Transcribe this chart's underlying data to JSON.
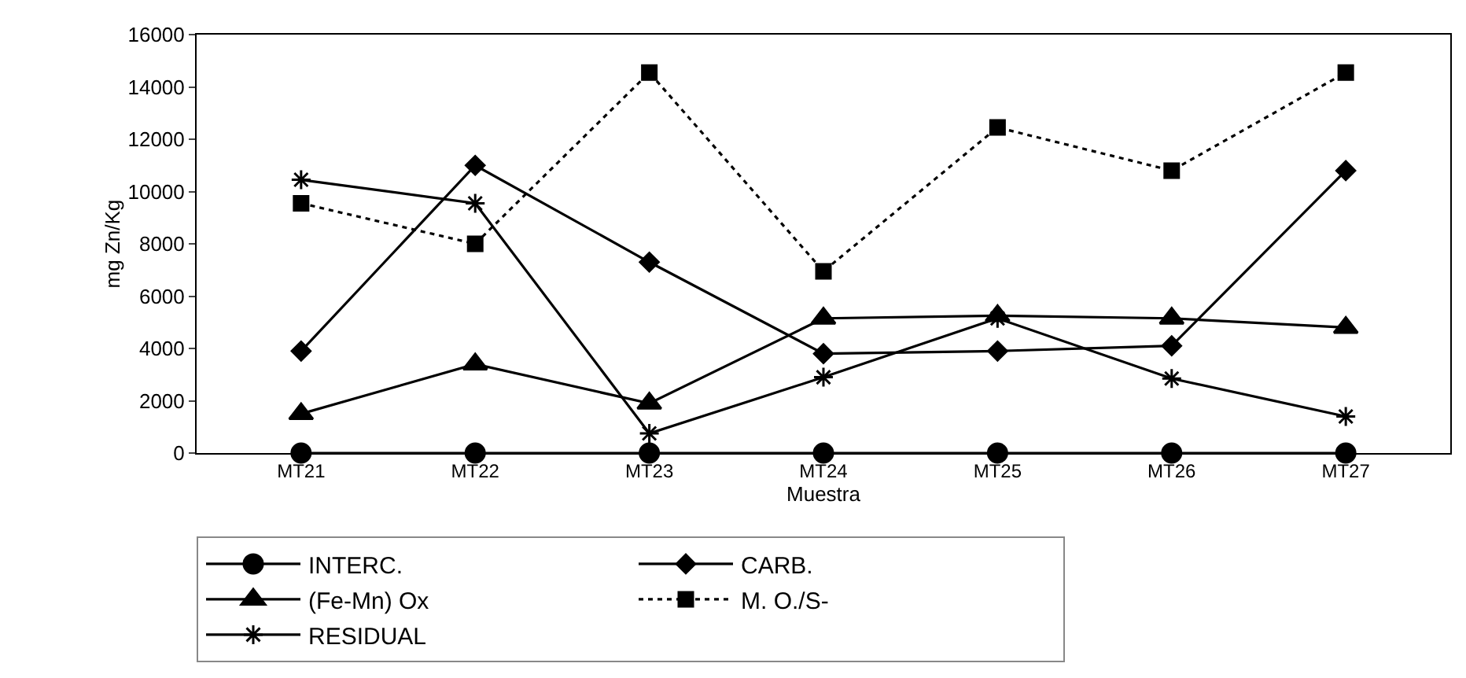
{
  "chart_data": {
    "type": "line",
    "xlabel": "Muestra",
    "ylabel": "mg Zn/Kg",
    "categories": [
      "MT21",
      "MT22",
      "MT23",
      "MT24",
      "MT25",
      "MT26",
      "MT27"
    ],
    "series": [
      {
        "name": "INTERC.",
        "color": "#000000",
        "marker": "circle",
        "line_style": "solid",
        "values": [
          0,
          0,
          0,
          0,
          0,
          0,
          0
        ]
      },
      {
        "name": "CARB.",
        "color": "#000000",
        "marker": "diamond",
        "line_style": "solid",
        "values": [
          3900,
          11000,
          7300,
          3800,
          3900,
          4100,
          10800
        ]
      },
      {
        "name": "(Fe-Mn) Ox",
        "color": "#000000",
        "marker": "triangle",
        "line_style": "solid",
        "values": [
          1500,
          3400,
          1900,
          5150,
          5250,
          5150,
          4800
        ]
      },
      {
        "name": "M. O./S-",
        "color": "#000000",
        "marker": "square",
        "line_style": "dotted",
        "values": [
          9550,
          8000,
          14550,
          6950,
          12450,
          10800,
          14550
        ]
      },
      {
        "name": "RESIDUAL",
        "color": "#000000",
        "marker": "cross",
        "line_style": "solid",
        "values": [
          10450,
          9550,
          750,
          2900,
          5150,
          2850,
          1400
        ]
      }
    ],
    "ylim": [
      0,
      16000
    ],
    "yticks": [
      0,
      2000,
      4000,
      6000,
      8000,
      10000,
      12000,
      14000,
      16000
    ],
    "grid": false,
    "legend": "bottom"
  }
}
